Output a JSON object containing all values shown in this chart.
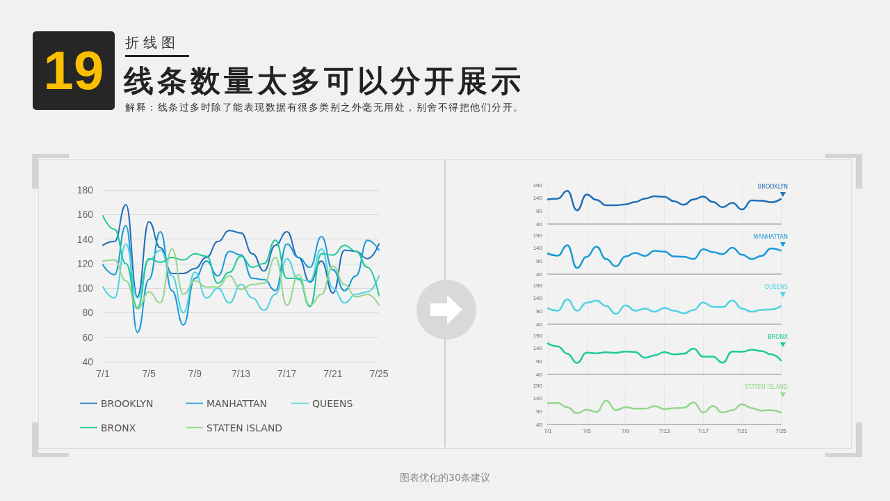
{
  "chart_data": [
    {
      "type": "line",
      "title": "线条数量太多可以分开展示",
      "subtitle": "解释：线条过多时除了能表现数据有很多类别之外毫无用处，别舍不得把他们分开。",
      "annotations": [
        "19",
        "折线图",
        "图表优化的30条建议"
      ],
      "categories": [
        "7/1",
        null,
        null,
        null,
        "7/5",
        null,
        null,
        null,
        "7/9",
        null,
        null,
        null,
        "7/13",
        null,
        null,
        null,
        "7/17",
        null,
        null,
        null,
        "7/21",
        null,
        null,
        null,
        "7/25"
      ],
      "series": [
        {
          "name": "BROOKLYN",
          "color": "#1f6fb8",
          "values": [
            135,
            138,
            168,
            93,
            154,
            133,
            112,
            112,
            116,
            125,
            138,
            147,
            145,
            128,
            114,
            135,
            146,
            125,
            105,
            122,
            96,
            131,
            130,
            124,
            136
          ]
        },
        {
          "name": "MANHATTAN",
          "color": "#1a9ad6",
          "values": [
            119,
            111,
            151,
            64,
            107,
            146,
            98,
            70,
            108,
            122,
            110,
            130,
            127,
            108,
            107,
            98,
            136,
            125,
            117,
            142,
            115,
            98,
            110,
            139,
            131
          ]
        },
        {
          "name": "QUEENS",
          "color": "#4fd3e3",
          "values": [
            101,
            92,
            136,
            92,
            123,
            131,
            110,
            80,
            113,
            92,
            100,
            88,
            103,
            92,
            82,
            95,
            124,
            107,
            106,
            132,
            100,
            88,
            95,
            97,
            110
          ]
        },
        {
          "name": "BRONX",
          "color": "#1fc99b",
          "values": [
            159,
            148,
            120,
            84,
            124,
            121,
            125,
            123,
            128,
            126,
            104,
            113,
            126,
            117,
            120,
            139,
            108,
            108,
            85,
            128,
            127,
            135,
            130,
            117,
            94
          ]
        },
        {
          "name": "STATEN ISLAND",
          "color": "#94d68c",
          "values": [
            122,
            123,
            106,
            83,
            97,
            88,
            132,
            95,
            106,
            101,
            101,
            110,
            99,
            103,
            104,
            125,
            86,
            111,
            86,
            95,
            118,
            103,
            93,
            95,
            86
          ]
        }
      ],
      "ylim": [
        40,
        180
      ],
      "yticks": [
        40,
        60,
        80,
        100,
        120,
        140,
        160,
        180
      ],
      "grid": "y",
      "legend": "bottom"
    },
    {
      "type": "line",
      "categories": [
        null,
        null,
        null,
        null,
        null,
        null,
        null,
        null,
        null,
        null,
        null,
        null,
        null,
        null,
        null,
        null,
        null,
        null,
        null,
        null,
        null,
        null,
        null,
        null,
        null
      ],
      "series": [
        {
          "name": "BROOKLYN",
          "color": "#1f6fb8",
          "values": [
            135,
            138,
            168,
            93,
            154,
            133,
            112,
            112,
            116,
            125,
            138,
            147,
            145,
            128,
            114,
            135,
            146,
            125,
            105,
            122,
            96,
            131,
            130,
            124,
            136
          ]
        }
      ],
      "ylim": [
        40,
        190
      ],
      "yticks": [
        40,
        90,
        140,
        190
      ],
      "grid": "x",
      "tick_labels": "y"
    },
    {
      "type": "line",
      "categories": [
        null,
        null,
        null,
        null,
        null,
        null,
        null,
        null,
        null,
        null,
        null,
        null,
        null,
        null,
        null,
        null,
        null,
        null,
        null,
        null,
        null,
        null,
        null,
        null,
        null
      ],
      "series": [
        {
          "name": "MANHATTAN",
          "color": "#1a9ad6",
          "values": [
            119,
            111,
            151,
            64,
            107,
            146,
            98,
            70,
            108,
            122,
            110,
            130,
            127,
            108,
            107,
            98,
            136,
            125,
            117,
            142,
            115,
            98,
            110,
            139,
            131
          ]
        }
      ],
      "ylim": [
        40,
        190
      ],
      "yticks": [
        40,
        90,
        140,
        190
      ],
      "grid": "x",
      "tick_labels": "y"
    },
    {
      "type": "line",
      "categories": [
        null,
        null,
        null,
        null,
        null,
        null,
        null,
        null,
        null,
        null,
        null,
        null,
        null,
        null,
        null,
        null,
        null,
        null,
        null,
        null,
        null,
        null,
        null,
        null,
        null
      ],
      "series": [
        {
          "name": "QUEENS",
          "color": "#4fd3e3",
          "values": [
            101,
            92,
            136,
            92,
            123,
            131,
            110,
            80,
            113,
            92,
            100,
            88,
            103,
            92,
            82,
            95,
            124,
            107,
            106,
            132,
            100,
            88,
            95,
            97,
            110
          ]
        }
      ],
      "ylim": [
        40,
        190
      ],
      "yticks": [
        40,
        90,
        140,
        190
      ],
      "grid": "x",
      "tick_labels": "y"
    },
    {
      "type": "line",
      "categories": [
        null,
        null,
        null,
        null,
        null,
        null,
        null,
        null,
        null,
        null,
        null,
        null,
        null,
        null,
        null,
        null,
        null,
        null,
        null,
        null,
        null,
        null,
        null,
        null,
        null
      ],
      "series": [
        {
          "name": "BRONX",
          "color": "#1fc99b",
          "values": [
            159,
            148,
            120,
            84,
            124,
            121,
            125,
            123,
            128,
            126,
            104,
            113,
            126,
            117,
            120,
            139,
            108,
            108,
            85,
            128,
            127,
            135,
            130,
            117,
            94
          ]
        }
      ],
      "ylim": [
        40,
        190
      ],
      "yticks": [
        40,
        90,
        140,
        190
      ],
      "grid": "x",
      "tick_labels": "y"
    },
    {
      "type": "line",
      "categories": [
        "7/1",
        null,
        null,
        null,
        "7/5",
        null,
        null,
        null,
        "7/9",
        null,
        null,
        null,
        "7/13",
        null,
        null,
        null,
        "7/17",
        null,
        null,
        null,
        "7/21",
        null,
        null,
        null,
        "7/25"
      ],
      "series": [
        {
          "name": "STATEN ISLAND",
          "color": "#94d68c",
          "values": [
            122,
            123,
            106,
            83,
            97,
            88,
            132,
            95,
            106,
            101,
            101,
            110,
            99,
            103,
            104,
            125,
            86,
            111,
            86,
            95,
            118,
            103,
            93,
            95,
            86
          ]
        }
      ],
      "ylim": [
        40,
        190
      ],
      "yticks": [
        40,
        90,
        140,
        190
      ],
      "grid": "x"
    }
  ]
}
